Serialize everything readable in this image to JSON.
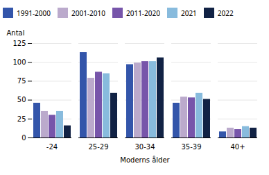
{
  "chart_data": {
    "type": "bar",
    "categories": [
      "-24",
      "25-29",
      "30-34",
      "35-39",
      "40+"
    ],
    "series": [
      {
        "name": "1991-2000",
        "color": "#3355AA",
        "values": [
          46,
          113,
          97,
          46,
          8
        ]
      },
      {
        "name": "2001-2010",
        "color": "#BBAACC",
        "values": [
          35,
          79,
          99,
          54,
          13
        ]
      },
      {
        "name": "2011-2020",
        "color": "#7755AA",
        "values": [
          30,
          87,
          101,
          53,
          11
        ]
      },
      {
        "name": "2021",
        "color": "#88BBDD",
        "values": [
          35,
          85,
          101,
          59,
          15
        ]
      },
      {
        "name": "2022",
        "color": "#112244",
        "values": [
          16,
          59,
          106,
          51,
          13
        ]
      }
    ],
    "ylabel": "Antal",
    "xlabel": "Moderns ålder",
    "ylim": [
      0,
      125
    ],
    "yticks": [
      0,
      25,
      50,
      75,
      100,
      125
    ],
    "grid": true,
    "legend": "top"
  }
}
